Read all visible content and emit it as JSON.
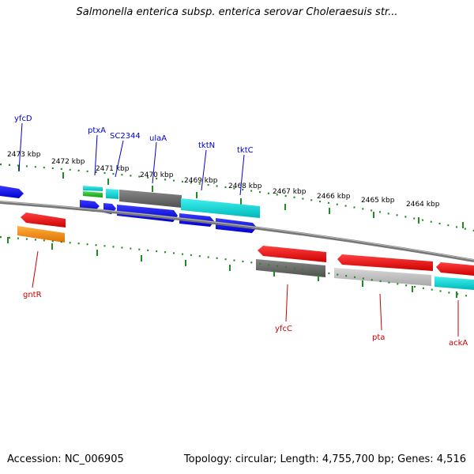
{
  "title": "Salmonella enterica subsp. enterica serovar Choleraesuis str...",
  "footer": {
    "accession": "Accession: NC_006905",
    "topology": "Topology: circular; Length: 4,755,700 bp; Genes: 4,516"
  },
  "scale_labels": [
    "2473 kbp",
    "2472 kbp",
    "2471 kbp",
    "2470 kbp",
    "2469 kbp",
    "2468 kbp",
    "2467 kbp",
    "2466 kbp",
    "2465 kbp",
    "2464 kbp"
  ],
  "genes_forward_labels": [
    "yfcD",
    "ptxA",
    "SC2344",
    "ulaA",
    "tktN",
    "tktC"
  ],
  "genes_reverse_labels": [
    "gntR",
    "yfcC",
    "pta",
    "ackA"
  ],
  "colors": {
    "forward_label": "#0000cc",
    "reverse_label": "#cc0000",
    "tick": "#228b22",
    "blue": "#0000ee",
    "red": "#ee0000",
    "cyan": "#00cccc",
    "gray": "#666666",
    "orange": "#ff8800",
    "green": "#22aa22"
  }
}
